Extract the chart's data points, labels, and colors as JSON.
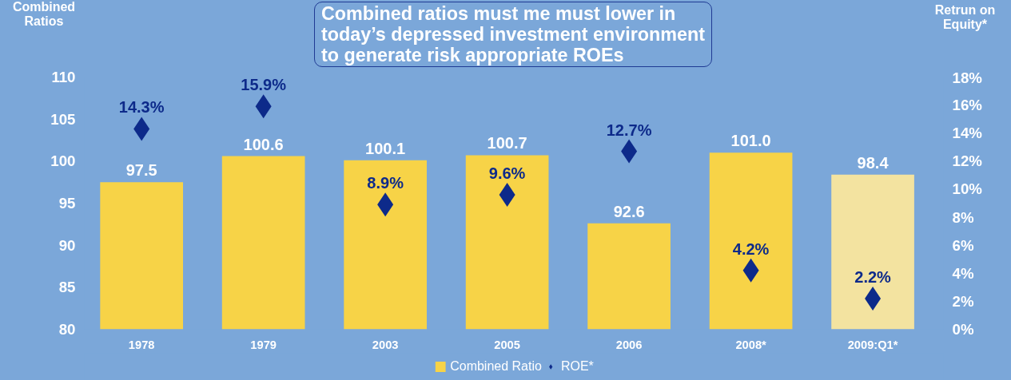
{
  "chart_data": {
    "type": "bar",
    "title": "Combined ratios must me must lower in\ntoday’s depressed investment environment\nto generate risk appropriate ROEs",
    "ylabel": "Combined\nRatios",
    "y2label": "Retrun on\nEquity*",
    "categories": [
      "1978",
      "1979",
      "2003",
      "2005",
      "2006",
      "2008*",
      "2009:Q1*"
    ],
    "series": [
      {
        "name": "Combined Ratio",
        "color": "#f7d347",
        "colors": [
          "#f7d347",
          "#f7d347",
          "#f7d347",
          "#f7d347",
          "#f7d347",
          "#f7d347",
          "#f3e3a0"
        ],
        "values": [
          97.5,
          100.6,
          100.1,
          100.7,
          92.6,
          101.0,
          98.4
        ],
        "value_labels": [
          "97.5",
          "100.6",
          "100.1",
          "100.7",
          "92.6",
          "101.0",
          "98.4"
        ]
      },
      {
        "name": "ROE*",
        "type": "scatter",
        "axis": "y2",
        "color": "#0d2a8a",
        "values": [
          14.3,
          15.9,
          8.9,
          9.6,
          12.7,
          4.2,
          2.2
        ],
        "value_labels": [
          "14.3%",
          "15.9%",
          "8.9%",
          "9.6%",
          "12.7%",
          "4.2%",
          "2.2%"
        ]
      }
    ],
    "marker": "diamond",
    "grid": false,
    "legend": "bottom",
    "ylim": [
      80,
      110
    ],
    "yticks": [
      80,
      85,
      90,
      95,
      100,
      105,
      110
    ],
    "y2lim": [
      0,
      18
    ],
    "y2ticks": [
      {
        "value": 0,
        "label": "0%"
      },
      {
        "value": 2,
        "label": "2%"
      },
      {
        "value": 4,
        "label": "4%"
      },
      {
        "value": 6,
        "label": "6%"
      },
      {
        "value": 8,
        "label": "8%"
      },
      {
        "value": 10,
        "label": "10%"
      },
      {
        "value": 12,
        "label": "12%"
      },
      {
        "value": 14,
        "label": "14%"
      },
      {
        "value": 16,
        "label": "16%"
      },
      {
        "value": 18,
        "label": "18%"
      }
    ]
  }
}
